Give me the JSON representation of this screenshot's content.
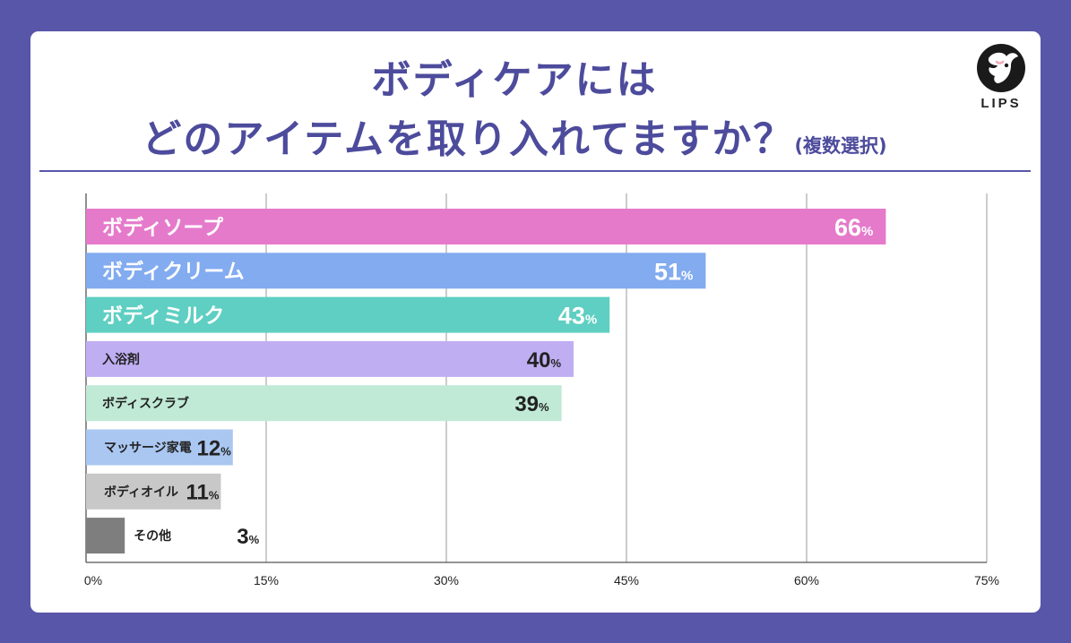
{
  "title": {
    "line1": "ボディケアには",
    "line2": "どのアイテムを取り入れてますか？",
    "note": "(複数選択)"
  },
  "logo": {
    "text": "LIPS"
  },
  "colors": {
    "background": "#5856a8",
    "title": "#4d4b9c",
    "grid": "#9a9a9a"
  },
  "chart_data": {
    "type": "bar",
    "orientation": "horizontal",
    "categories": [
      "ボディソープ",
      "ボディクリーム",
      "ボディミルク",
      "入浴剤",
      "ボディスクラブ",
      "マッサージ家電",
      "ボディオイル",
      "その他"
    ],
    "values": [
      66,
      51,
      43,
      40,
      39,
      12,
      11,
      3
    ],
    "value_suffix": "%",
    "bar_colors": [
      "#e57acb",
      "#82abf0",
      "#5ecfc2",
      "#c0aef3",
      "#c0ead6",
      "#a9c7f1",
      "#c8c8c8",
      "#7e7e7e"
    ],
    "xlim": [
      0,
      75
    ],
    "x_ticks": [
      0,
      15,
      30,
      45,
      60,
      75
    ],
    "x_tick_labels": [
      "0%",
      "15%",
      "30%",
      "45%",
      "60%",
      "75%"
    ],
    "grid": true
  }
}
